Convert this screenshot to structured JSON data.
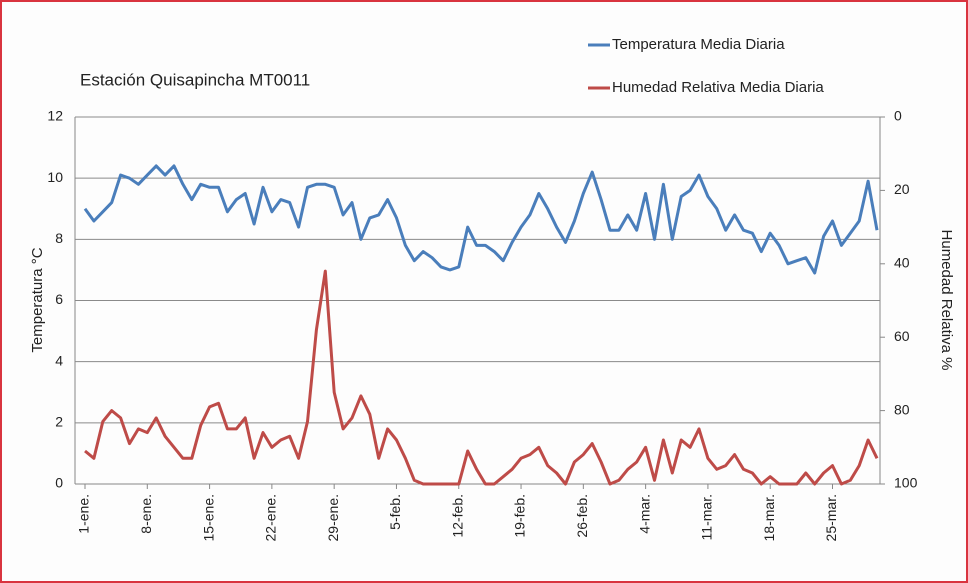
{
  "chart_data": {
    "type": "line",
    "title": "Estación Quisapincha  MT0011",
    "y_label": "Temperatura °C",
    "y2_label": "Humedad Relativa %",
    "categories": [
      "1-ene.",
      null,
      null,
      null,
      null,
      null,
      null,
      "8-ene.",
      null,
      null,
      null,
      null,
      null,
      null,
      "15-ene.",
      null,
      null,
      null,
      null,
      null,
      null,
      "22-ene.",
      null,
      null,
      null,
      null,
      null,
      null,
      "29-ene.",
      null,
      null,
      null,
      null,
      null,
      null,
      "5-feb.",
      null,
      null,
      null,
      null,
      null,
      null,
      "12-feb.",
      null,
      null,
      null,
      null,
      null,
      null,
      "19-feb.",
      null,
      null,
      null,
      null,
      null,
      null,
      "26-feb.",
      null,
      null,
      null,
      null,
      null,
      null,
      "4-mar.",
      null,
      null,
      null,
      null,
      null,
      null,
      "11-mar.",
      null,
      null,
      null,
      null,
      null,
      null,
      "18-mar.",
      null,
      null,
      null,
      null,
      null,
      null,
      "25-mar.",
      null,
      null,
      null,
      null,
      null
    ],
    "series": [
      {
        "name": "Temperatura Media Diaria",
        "color": "#4a7ebb",
        "axis": "y",
        "values": [
          9.0,
          8.6,
          8.9,
          9.2,
          10.1,
          10.0,
          9.8,
          10.1,
          10.4,
          10.1,
          10.4,
          9.8,
          9.3,
          9.8,
          9.7,
          9.7,
          8.9,
          9.3,
          9.5,
          8.5,
          9.7,
          8.9,
          9.3,
          9.2,
          8.4,
          9.7,
          9.8,
          9.8,
          9.7,
          8.8,
          9.2,
          8.0,
          8.7,
          8.8,
          9.3,
          8.7,
          7.8,
          7.3,
          7.6,
          7.4,
          7.1,
          7.0,
          7.1,
          8.4,
          7.8,
          7.8,
          7.6,
          7.3,
          7.9,
          8.4,
          8.8,
          9.5,
          9.0,
          8.4,
          7.9,
          8.6,
          9.5,
          10.2,
          9.3,
          8.3,
          8.3,
          8.8,
          8.3,
          9.5,
          8.0,
          9.8,
          8.0,
          9.4,
          9.6,
          10.1,
          9.4,
          9.0,
          8.3,
          8.8,
          8.3,
          8.2,
          7.6,
          8.2,
          7.8,
          7.2,
          7.3,
          7.4,
          6.9,
          8.1,
          8.6,
          7.8,
          8.2,
          8.6,
          9.9,
          8.3
        ]
      },
      {
        "name": "Humedad Relativa Media Diaria",
        "color": "#be4b48",
        "axis": "y2",
        "values": [
          91,
          93,
          83,
          80,
          82,
          89,
          85,
          86,
          82,
          87,
          90,
          93,
          93,
          84,
          79,
          78,
          85,
          85,
          82,
          93,
          86,
          90,
          88,
          87,
          93,
          83,
          58,
          42,
          75,
          85,
          82,
          76,
          81,
          93,
          85,
          88,
          93,
          99,
          100,
          100,
          100,
          100,
          100,
          91,
          96,
          100,
          100,
          98,
          96,
          93,
          92,
          90,
          95,
          97,
          100,
          94,
          92,
          89,
          94,
          100,
          99,
          96,
          94,
          90,
          99,
          88,
          97,
          88,
          90,
          85,
          93,
          96,
          95,
          92,
          96,
          97,
          100,
          98,
          100,
          100,
          100,
          97,
          100,
          97,
          95,
          100,
          99,
          95,
          88,
          93
        ]
      }
    ],
    "ylim": [
      0,
      12
    ],
    "yticks": [
      0,
      2,
      4,
      6,
      8,
      10,
      12
    ],
    "y2lim": [
      0,
      100
    ],
    "y2ticks": [
      0,
      20,
      40,
      60,
      80,
      100
    ],
    "y2_inverted": true,
    "grid": true,
    "legend": "top-right"
  }
}
